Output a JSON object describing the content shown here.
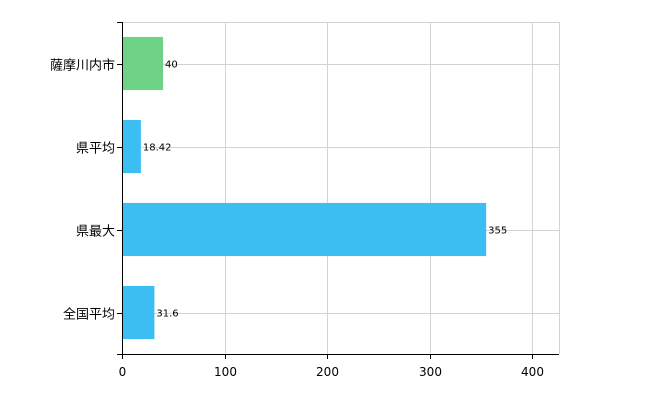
{
  "chart_data": {
    "type": "bar",
    "orientation": "horizontal",
    "categories": [
      "薩摩川内市",
      "県平均",
      "県最大",
      "全国平均"
    ],
    "values": [
      40,
      18.42,
      355,
      31.6
    ],
    "data_labels": [
      "40",
      "18.42",
      "355",
      "31.6"
    ],
    "bar_colors": [
      "#6fd387",
      "#3cbef2",
      "#3cbef2",
      "#3cbef2"
    ],
    "x_ticks": [
      0,
      100,
      200,
      300,
      400
    ],
    "xlim": [
      0,
      426
    ],
    "grid": true,
    "title": "",
    "xlabel": "",
    "ylabel": ""
  }
}
